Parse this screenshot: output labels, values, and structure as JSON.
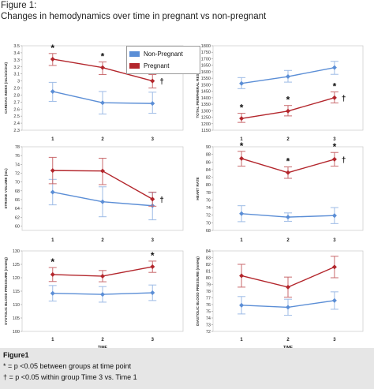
{
  "figure_label": "Figure 1:",
  "title": "Changes in hemodynamics over time  in pregnant vs non-pregnant",
  "legend": {
    "non_pregnant": "Non-Pregnant",
    "pregnant": "Pregnant"
  },
  "colors": {
    "non_pregnant": "#5b8ed6",
    "pregnant": "#b3262c",
    "non_pregnant_err": "#9dbbe6",
    "pregnant_err": "#c96a6d"
  },
  "caption": {
    "heading": "Figure1",
    "line1": "* = p <0.05 between groups at time point",
    "line2": "† = p <0.05 within group Time 3 vs. Time 1"
  },
  "chart_data": [
    {
      "type": "line",
      "ylabel": "CARDIAC INDEX (mL/min/m2)",
      "xlabel": "",
      "categories": [
        "1",
        "2",
        "3"
      ],
      "ylim": [
        2.3,
        3.5
      ],
      "yticks": [
        2.3,
        2.4,
        2.5,
        2.6,
        2.7,
        2.8,
        2.9,
        3,
        3.1,
        3.2,
        3.3,
        3.4,
        3.5
      ],
      "series": [
        {
          "name": "Non-Pregnant",
          "values": [
            2.85,
            2.69,
            2.68
          ],
          "err_low": [
            2.71,
            2.53,
            2.54
          ],
          "err_high": [
            2.98,
            2.85,
            2.84
          ]
        },
        {
          "name": "Pregnant",
          "values": [
            3.31,
            3.19,
            3.0
          ],
          "err_low": [
            3.22,
            3.09,
            2.9
          ],
          "err_high": [
            3.39,
            3.27,
            3.09
          ]
        }
      ],
      "stars": [
        "*",
        "*",
        "*"
      ],
      "dagger": "†"
    },
    {
      "type": "line",
      "ylabel": "TOTAL PERIPHERAL RESISTANCE",
      "xlabel": "",
      "categories": [
        "1",
        "2",
        "3"
      ],
      "ylim": [
        1150,
        1800
      ],
      "yticks": [
        1150,
        1200,
        1250,
        1300,
        1350,
        1400,
        1450,
        1500,
        1550,
        1600,
        1650,
        1700,
        1750,
        1800
      ],
      "series": [
        {
          "name": "Non-Pregnant",
          "values": [
            1510,
            1563,
            1632
          ],
          "err_low": [
            1470,
            1520,
            1580
          ],
          "err_high": [
            1555,
            1610,
            1680
          ]
        },
        {
          "name": "Pregnant",
          "values": [
            1240,
            1297,
            1400
          ],
          "err_low": [
            1210,
            1260,
            1360
          ],
          "err_high": [
            1280,
            1340,
            1445
          ]
        }
      ],
      "stars": [
        "*",
        "*",
        "*"
      ],
      "dagger": "†"
    },
    {
      "type": "line",
      "ylabel": "STROKE VOLUME (mL)",
      "xlabel": "",
      "categories": [
        "1",
        "2",
        "3"
      ],
      "ylim": [
        59,
        78
      ],
      "yticks": [
        60,
        62,
        64,
        66,
        68,
        70,
        72,
        74,
        76,
        78
      ],
      "series": [
        {
          "name": "Non-Pregnant",
          "values": [
            67.7,
            65.5,
            64.6
          ],
          "err_low": [
            64.8,
            62.1,
            61.4
          ],
          "err_high": [
            70.6,
            68.9,
            67.6
          ]
        },
        {
          "name": "Pregnant",
          "values": [
            72.6,
            72.5,
            66.1
          ],
          "err_low": [
            69.6,
            69.4,
            64.5
          ],
          "err_high": [
            75.6,
            75.4,
            67.7
          ]
        }
      ],
      "stars": [
        "",
        "",
        ""
      ],
      "dagger": "†"
    },
    {
      "type": "line",
      "ylabel": "HEART RATE",
      "xlabel": "",
      "categories": [
        "1",
        "2",
        "3"
      ],
      "ylim": [
        68,
        90
      ],
      "yticks": [
        68,
        70,
        72,
        74,
        76,
        78,
        80,
        82,
        84,
        86,
        88,
        90
      ],
      "series": [
        {
          "name": "Non-Pregnant",
          "values": [
            72.4,
            71.5,
            71.9
          ],
          "err_low": [
            70.3,
            70.4,
            69.8
          ],
          "err_high": [
            74.5,
            72.6,
            74.0
          ]
        },
        {
          "name": "Pregnant",
          "values": [
            86.9,
            83.2,
            86.7
          ],
          "err_low": [
            84.9,
            81.7,
            84.9
          ],
          "err_high": [
            88.8,
            84.7,
            88.5
          ]
        }
      ],
      "stars": [
        "*",
        "*",
        "*"
      ],
      "dagger": "†"
    },
    {
      "type": "line",
      "ylabel": "SYSTOLIC BLOOD PRESSURE (mmHg)",
      "xlabel": "",
      "categories": [
        "1",
        "2",
        "3"
      ],
      "ylim": [
        100,
        130
      ],
      "yticks": [
        100,
        105,
        110,
        115,
        120,
        125,
        130
      ],
      "series": [
        {
          "name": "Non-Pregnant",
          "values": [
            114.2,
            113.8,
            114.4
          ],
          "err_low": [
            111.3,
            110.9,
            111.5
          ],
          "err_high": [
            117.1,
            116.7,
            117.3
          ]
        },
        {
          "name": "Pregnant",
          "values": [
            121.2,
            120.6,
            124.1
          ],
          "err_low": [
            118.6,
            118.5,
            122.0
          ],
          "err_high": [
            123.8,
            122.7,
            126.2
          ]
        }
      ],
      "stars": [
        "*",
        "",
        "*"
      ],
      "dagger": ""
    },
    {
      "type": "line",
      "ylabel": "DIASTOLIC BLOOD PRESSURE (mmHg)",
      "xlabel": "TIME",
      "categories": [
        "1",
        "2",
        "3"
      ],
      "ylim": [
        72,
        84
      ],
      "yticks": [
        72,
        73,
        74,
        75,
        76,
        77,
        78,
        79,
        80,
        81,
        82,
        83,
        84
      ],
      "series": [
        {
          "name": "Non-Pregnant",
          "values": [
            75.9,
            75.6,
            76.6
          ],
          "err_low": [
            74.6,
            74.4,
            75.3
          ],
          "err_high": [
            77.2,
            76.8,
            77.9
          ]
        },
        {
          "name": "Pregnant",
          "values": [
            80.3,
            78.6,
            81.6
          ],
          "err_low": [
            78.6,
            77.1,
            80.0
          ],
          "err_high": [
            82.0,
            80.1,
            83.2
          ]
        }
      ],
      "stars": [
        "",
        "",
        ""
      ],
      "dagger": ""
    }
  ],
  "extra_xlabel": "TIME"
}
